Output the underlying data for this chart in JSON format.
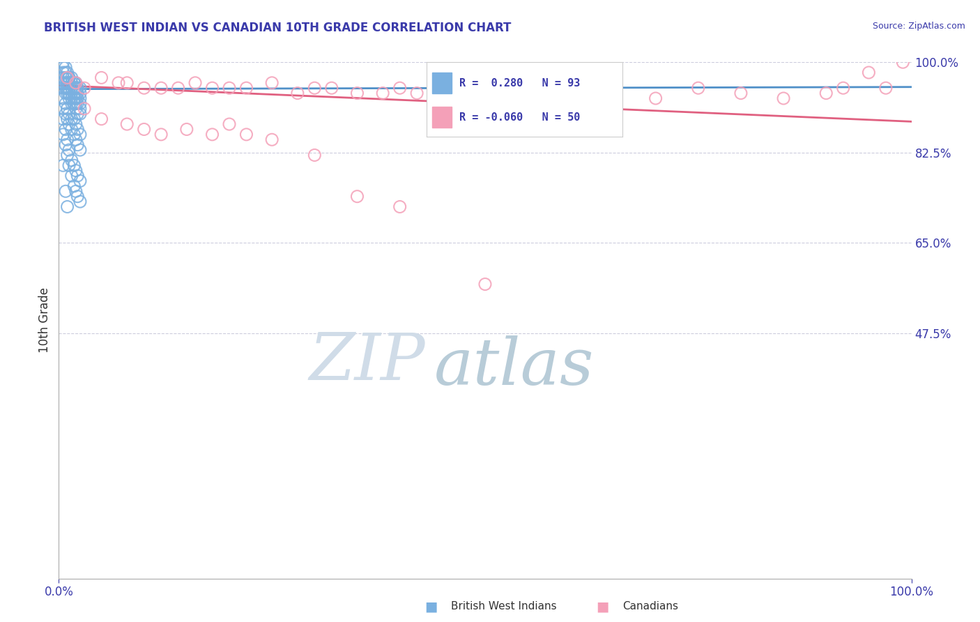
{
  "title": "BRITISH WEST INDIAN VS CANADIAN 10TH GRADE CORRELATION CHART",
  "source": "Source: ZipAtlas.com",
  "ylabel": "10th Grade",
  "xlim": [
    0.0,
    1.0
  ],
  "ylim": [
    0.0,
    1.0
  ],
  "xtick_labels": [
    "0.0%",
    "100.0%"
  ],
  "ytick_labels": [
    "100.0%",
    "82.5%",
    "65.0%",
    "47.5%"
  ],
  "ytick_positions": [
    1.0,
    0.825,
    0.65,
    0.475
  ],
  "title_color": "#3a3aaa",
  "source_color": "#3a3aaa",
  "axis_label_color": "#333333",
  "tick_color": "#3a3aaa",
  "grid_color": "#ccccdd",
  "blue_color": "#7ab0e0",
  "pink_color": "#f4a0b8",
  "blue_line_color": "#5090c8",
  "pink_line_color": "#e06080",
  "R_blue": 0.28,
  "N_blue": 93,
  "R_pink": -0.06,
  "N_pink": 50,
  "blue_x": [
    0.005,
    0.008,
    0.01,
    0.012,
    0.015,
    0.018,
    0.02,
    0.022,
    0.025,
    0.005,
    0.008,
    0.01,
    0.012,
    0.015,
    0.018,
    0.02,
    0.022,
    0.025,
    0.005,
    0.008,
    0.01,
    0.012,
    0.015,
    0.018,
    0.02,
    0.022,
    0.025,
    0.005,
    0.008,
    0.01,
    0.012,
    0.015,
    0.018,
    0.02,
    0.022,
    0.025,
    0.005,
    0.008,
    0.01,
    0.012,
    0.015,
    0.018,
    0.02,
    0.022,
    0.025,
    0.005,
    0.008,
    0.01,
    0.012,
    0.015,
    0.018,
    0.02,
    0.022,
    0.025,
    0.005,
    0.008,
    0.01,
    0.012,
    0.015,
    0.018,
    0.02,
    0.022,
    0.025,
    0.005,
    0.008,
    0.01,
    0.012,
    0.015,
    0.018,
    0.02,
    0.022,
    0.025,
    0.005,
    0.008,
    0.01,
    0.012,
    0.015,
    0.018,
    0.02,
    0.022,
    0.025,
    0.005,
    0.008,
    0.01,
    0.012,
    0.015,
    0.018,
    0.02,
    0.022,
    0.025,
    0.005,
    0.008,
    0.01
  ],
  "blue_y": [
    1.0,
    0.99,
    0.98,
    0.97,
    0.97,
    0.96,
    0.96,
    0.95,
    0.95,
    0.99,
    0.98,
    0.97,
    0.97,
    0.96,
    0.96,
    0.95,
    0.95,
    0.94,
    0.98,
    0.97,
    0.97,
    0.96,
    0.95,
    0.95,
    0.94,
    0.94,
    0.93,
    0.97,
    0.96,
    0.96,
    0.95,
    0.94,
    0.94,
    0.93,
    0.93,
    0.92,
    0.96,
    0.95,
    0.95,
    0.94,
    0.93,
    0.93,
    0.92,
    0.92,
    0.91,
    0.95,
    0.94,
    0.94,
    0.93,
    0.92,
    0.92,
    0.91,
    0.9,
    0.9,
    0.93,
    0.92,
    0.91,
    0.9,
    0.89,
    0.89,
    0.88,
    0.87,
    0.86,
    0.91,
    0.9,
    0.89,
    0.88,
    0.87,
    0.86,
    0.85,
    0.84,
    0.83,
    0.89,
    0.87,
    0.85,
    0.83,
    0.81,
    0.8,
    0.79,
    0.78,
    0.77,
    0.86,
    0.84,
    0.82,
    0.8,
    0.78,
    0.76,
    0.75,
    0.74,
    0.73,
    0.8,
    0.75,
    0.72
  ],
  "pink_x": [
    0.01,
    0.02,
    0.03,
    0.05,
    0.07,
    0.08,
    0.1,
    0.12,
    0.14,
    0.16,
    0.18,
    0.2,
    0.22,
    0.25,
    0.28,
    0.3,
    0.32,
    0.35,
    0.38,
    0.4,
    0.42,
    0.44,
    0.48,
    0.5,
    0.55,
    0.6,
    0.65,
    0.7,
    0.75,
    0.8,
    0.85,
    0.9,
    0.92,
    0.95,
    0.97,
    0.99,
    0.03,
    0.05,
    0.08,
    0.1,
    0.12,
    0.15,
    0.18,
    0.2,
    0.22,
    0.25,
    0.3,
    0.35,
    0.4,
    0.5
  ],
  "pink_y": [
    0.97,
    0.96,
    0.95,
    0.97,
    0.96,
    0.96,
    0.95,
    0.95,
    0.95,
    0.96,
    0.95,
    0.95,
    0.95,
    0.96,
    0.94,
    0.95,
    0.95,
    0.94,
    0.94,
    0.95,
    0.94,
    0.92,
    0.93,
    0.94,
    0.93,
    0.89,
    0.94,
    0.93,
    0.95,
    0.94,
    0.93,
    0.94,
    0.95,
    0.98,
    0.95,
    1.0,
    0.91,
    0.89,
    0.88,
    0.87,
    0.86,
    0.87,
    0.86,
    0.88,
    0.86,
    0.85,
    0.82,
    0.74,
    0.72,
    0.57
  ],
  "watermark_zip": "ZIP",
  "watermark_atlas": "atlas",
  "watermark_color_zip": "#d0dce8",
  "watermark_color_atlas": "#b8ccd8"
}
